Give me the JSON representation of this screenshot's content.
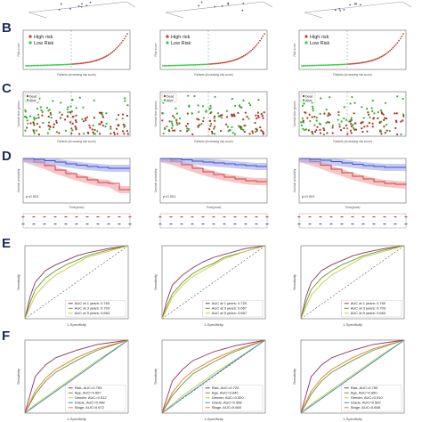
{
  "figure": {
    "row_labels": [
      "B",
      "C",
      "D",
      "E",
      "F"
    ],
    "colors": {
      "high": "#c0392b",
      "low": "#2ecc40",
      "dead": "#b03020",
      "alive": "#30b030",
      "km_high": "#d04040",
      "km_low": "#4050c0",
      "band_high": "#f0a0a0",
      "band_low": "#a0a8f0",
      "roc1": "#8e3060",
      "roc2": "#6a9a30",
      "roc3": "#c9c940",
      "diag": "#555555"
    }
  },
  "chart_data": [
    {
      "type": "scatter",
      "row": "B",
      "title": "",
      "xlabel": "Patients (increasing risk score)",
      "ylabel": "Risk score",
      "legend": [
        "High risk",
        "Low Risk"
      ],
      "legend_position": "top-left"
    },
    {
      "type": "scatter",
      "row": "B",
      "title": "",
      "xlabel": "Patients (increasing risk score)",
      "ylabel": "Risk score",
      "legend": [
        "High risk",
        "Low Risk"
      ],
      "legend_position": "top-left"
    },
    {
      "type": "scatter",
      "row": "B",
      "title": "",
      "xlabel": "Patients (increasing risk score)",
      "ylabel": "Risk score",
      "legend": [
        "High risk",
        "Low Risk"
      ],
      "legend_position": "top-left"
    },
    {
      "type": "scatter",
      "row": "C",
      "xlabel": "Patients (increasing risk score)",
      "ylabel": "Survival time (years)",
      "legend": [
        "Dead",
        "Alive"
      ],
      "legend_position": "top-left"
    },
    {
      "type": "scatter",
      "row": "C",
      "xlabel": "Patients (increasing risk score)",
      "ylabel": "Survival time (years)",
      "legend": [
        "Dead",
        "Alive"
      ],
      "legend_position": "top-left"
    },
    {
      "type": "scatter",
      "row": "C",
      "xlabel": "Patients (increasing risk score)",
      "ylabel": "Survival time (years)",
      "legend": [
        "Dead",
        "Alive"
      ],
      "legend_position": "top-left"
    },
    {
      "type": "line",
      "row": "D",
      "xlabel": "Time(years)",
      "ylabel": "Survival probability",
      "pvalue": "p<0.001",
      "series": [
        {
          "x": [
            0,
            1,
            2,
            3,
            4,
            5,
            6,
            7,
            8,
            9,
            10
          ],
          "values": [
            1.0,
            0.92,
            0.84,
            0.74,
            0.66,
            0.58,
            0.52,
            0.46,
            0.44,
            0.3,
            0.3
          ]
        },
        {
          "x": [
            0,
            1,
            2,
            3,
            4,
            5,
            6,
            7,
            8,
            9,
            10
          ],
          "values": [
            1.0,
            0.98,
            0.95,
            0.92,
            0.88,
            0.85,
            0.82,
            0.8,
            0.78,
            0.78,
            0.78
          ]
        }
      ]
    },
    {
      "type": "line",
      "row": "D",
      "xlabel": "Time(years)",
      "ylabel": "Survival probability",
      "pvalue": "p<0.001",
      "series": [
        {
          "x": [
            0,
            1,
            2,
            3,
            4,
            5,
            6,
            7,
            8,
            9,
            10
          ],
          "values": [
            1.0,
            0.94,
            0.86,
            0.78,
            0.7,
            0.64,
            0.58,
            0.54,
            0.5,
            0.48,
            0.48
          ]
        },
        {
          "x": [
            0,
            1,
            2,
            3,
            4,
            5,
            6,
            7,
            8,
            9,
            10
          ],
          "values": [
            1.0,
            0.99,
            0.97,
            0.94,
            0.92,
            0.9,
            0.88,
            0.86,
            0.84,
            0.82,
            0.82
          ]
        }
      ]
    },
    {
      "type": "line",
      "row": "D",
      "xlabel": "Time(years)",
      "ylabel": "Survival probability",
      "pvalue": "p<0.001",
      "series": [
        {
          "x": [
            0,
            1,
            2,
            3,
            4,
            5,
            6,
            7,
            8,
            9,
            10
          ],
          "values": [
            1.0,
            0.93,
            0.85,
            0.76,
            0.68,
            0.6,
            0.54,
            0.48,
            0.44,
            0.42,
            0.4
          ]
        },
        {
          "x": [
            0,
            1,
            2,
            3,
            4,
            5,
            6,
            7,
            8,
            9,
            10
          ],
          "values": [
            1.0,
            0.98,
            0.96,
            0.93,
            0.9,
            0.87,
            0.84,
            0.82,
            0.8,
            0.8,
            0.8
          ]
        }
      ]
    },
    {
      "type": "line",
      "row": "E",
      "xlabel": "1-Specificity",
      "ylabel": "Sensitivity",
      "legend": [
        "AUC at 1 years: 0.763",
        "AUC at 3 years: 0.703",
        "AUC at 5 years: 0.663"
      ],
      "legend_position": "bottom-right",
      "series": [
        {
          "x": [
            0,
            0.05,
            0.1,
            0.2,
            0.3,
            0.4,
            0.5,
            0.6,
            0.8,
            1
          ],
          "values": [
            0,
            0.3,
            0.5,
            0.66,
            0.74,
            0.8,
            0.86,
            0.9,
            0.96,
            1
          ]
        },
        {
          "x": [
            0,
            0.05,
            0.1,
            0.2,
            0.3,
            0.4,
            0.5,
            0.6,
            0.8,
            1
          ],
          "values": [
            0,
            0.22,
            0.4,
            0.56,
            0.66,
            0.74,
            0.8,
            0.86,
            0.94,
            1
          ]
        },
        {
          "x": [
            0,
            0.05,
            0.1,
            0.2,
            0.3,
            0.4,
            0.5,
            0.6,
            0.8,
            1
          ],
          "values": [
            0,
            0.16,
            0.32,
            0.48,
            0.6,
            0.68,
            0.76,
            0.84,
            0.92,
            1
          ]
        }
      ]
    },
    {
      "type": "line",
      "row": "E",
      "xlabel": "1-Specificity",
      "ylabel": "Sensitivity",
      "legend": [
        "AUC at 1 years: 0.720",
        "AUC at 3 years: 0.667",
        "AUC at 5 years: 0.657"
      ],
      "legend_position": "bottom-right",
      "series": [
        {
          "x": [
            0,
            0.05,
            0.1,
            0.2,
            0.3,
            0.4,
            0.5,
            0.6,
            0.8,
            1
          ],
          "values": [
            0,
            0.26,
            0.46,
            0.6,
            0.7,
            0.78,
            0.84,
            0.88,
            0.96,
            1
          ]
        },
        {
          "x": [
            0,
            0.05,
            0.1,
            0.2,
            0.3,
            0.4,
            0.5,
            0.6,
            0.8,
            1
          ],
          "values": [
            0,
            0.18,
            0.34,
            0.5,
            0.62,
            0.7,
            0.76,
            0.84,
            0.92,
            1
          ]
        },
        {
          "x": [
            0,
            0.05,
            0.1,
            0.2,
            0.3,
            0.4,
            0.5,
            0.6,
            0.8,
            1
          ],
          "values": [
            0,
            0.14,
            0.3,
            0.46,
            0.58,
            0.66,
            0.74,
            0.82,
            0.92,
            1
          ]
        }
      ]
    },
    {
      "type": "line",
      "row": "E",
      "xlabel": "1-Specificity",
      "ylabel": "Sensitivity",
      "legend": [
        "AUC at 1 years: 0.760",
        "AUC at 3 years: 0.703",
        "AUC at 5 years: 0.663"
      ],
      "legend_position": "bottom-right",
      "series": [
        {
          "x": [
            0,
            0.05,
            0.1,
            0.2,
            0.3,
            0.4,
            0.5,
            0.6,
            0.8,
            1
          ],
          "values": [
            0,
            0.3,
            0.5,
            0.66,
            0.74,
            0.8,
            0.86,
            0.9,
            0.96,
            1
          ]
        },
        {
          "x": [
            0,
            0.05,
            0.1,
            0.2,
            0.3,
            0.4,
            0.5,
            0.6,
            0.8,
            1
          ],
          "values": [
            0,
            0.22,
            0.4,
            0.56,
            0.66,
            0.74,
            0.8,
            0.86,
            0.94,
            1
          ]
        },
        {
          "x": [
            0,
            0.05,
            0.1,
            0.2,
            0.3,
            0.4,
            0.5,
            0.6,
            0.8,
            1
          ],
          "values": [
            0,
            0.16,
            0.32,
            0.48,
            0.6,
            0.68,
            0.76,
            0.84,
            0.92,
            1
          ]
        }
      ]
    },
    {
      "type": "line",
      "row": "F",
      "xlabel": "1-Specificity",
      "ylabel": "Sensitivity",
      "legend": [
        "Risk, AUC=0.763",
        "Age, AUC=0.657",
        "Gender, AUC=0.512",
        "Grade, AUC=0.498",
        "Stage, AUC=0.672"
      ],
      "legend_position": "bottom-right",
      "series": [
        {
          "x": [
            0,
            0.1,
            0.2,
            0.3,
            0.5,
            0.7,
            1
          ],
          "values": [
            0,
            0.5,
            0.66,
            0.76,
            0.86,
            0.94,
            1
          ]
        },
        {
          "x": [
            0,
            0.1,
            0.2,
            0.3,
            0.5,
            0.7,
            1
          ],
          "values": [
            0,
            0.26,
            0.44,
            0.56,
            0.72,
            0.86,
            1
          ]
        },
        {
          "x": [
            0,
            0.1,
            0.2,
            0.3,
            0.5,
            0.7,
            1
          ],
          "values": [
            0,
            0.12,
            0.22,
            0.32,
            0.52,
            0.72,
            1
          ]
        },
        {
          "x": [
            0,
            0.1,
            0.2,
            0.3,
            0.5,
            0.7,
            1
          ],
          "values": [
            0,
            0.1,
            0.2,
            0.3,
            0.5,
            0.7,
            1
          ]
        },
        {
          "x": [
            0,
            0.1,
            0.2,
            0.3,
            0.5,
            0.7,
            1
          ],
          "values": [
            0,
            0.3,
            0.48,
            0.6,
            0.76,
            0.88,
            1
          ]
        }
      ]
    },
    {
      "type": "line",
      "row": "F",
      "xlabel": "1-Specificity",
      "ylabel": "Sensitivity",
      "legend": [
        "Risk, AUC=0.720",
        "Age, AUC=0.640",
        "Gender, AUC=0.520",
        "Grade, AUC=0.508",
        "Stage, AUC=0.660"
      ],
      "legend_position": "bottom-right",
      "series": [
        {
          "x": [
            0,
            0.1,
            0.2,
            0.3,
            0.5,
            0.7,
            1
          ],
          "values": [
            0,
            0.44,
            0.6,
            0.72,
            0.84,
            0.92,
            1
          ]
        },
        {
          "x": [
            0,
            0.1,
            0.2,
            0.3,
            0.5,
            0.7,
            1
          ],
          "values": [
            0,
            0.24,
            0.4,
            0.54,
            0.7,
            0.84,
            1
          ]
        },
        {
          "x": [
            0,
            0.1,
            0.2,
            0.3,
            0.5,
            0.7,
            1
          ],
          "values": [
            0,
            0.12,
            0.24,
            0.34,
            0.54,
            0.72,
            1
          ]
        },
        {
          "x": [
            0,
            0.1,
            0.2,
            0.3,
            0.5,
            0.7,
            1
          ],
          "values": [
            0,
            0.1,
            0.21,
            0.31,
            0.51,
            0.71,
            1
          ]
        },
        {
          "x": [
            0,
            0.1,
            0.2,
            0.3,
            0.5,
            0.7,
            1
          ],
          "values": [
            0,
            0.28,
            0.46,
            0.58,
            0.74,
            0.86,
            1
          ]
        }
      ]
    },
    {
      "type": "line",
      "row": "F",
      "xlabel": "1-Specificity",
      "ylabel": "Sensitivity",
      "legend": [
        "Risk, AUC=0.760",
        "Age, AUC=0.650",
        "Gender, AUC=0.510",
        "Grade, AUC=0.502",
        "Stage, AUC=0.668"
      ],
      "legend_position": "bottom-right",
      "series": [
        {
          "x": [
            0,
            0.1,
            0.2,
            0.3,
            0.5,
            0.7,
            1
          ],
          "values": [
            0,
            0.5,
            0.66,
            0.76,
            0.86,
            0.94,
            1
          ]
        },
        {
          "x": [
            0,
            0.1,
            0.2,
            0.3,
            0.5,
            0.7,
            1
          ],
          "values": [
            0,
            0.26,
            0.44,
            0.56,
            0.72,
            0.86,
            1
          ]
        },
        {
          "x": [
            0,
            0.1,
            0.2,
            0.3,
            0.5,
            0.7,
            1
          ],
          "values": [
            0,
            0.12,
            0.22,
            0.32,
            0.52,
            0.72,
            1
          ]
        },
        {
          "x": [
            0,
            0.1,
            0.2,
            0.3,
            0.5,
            0.7,
            1
          ],
          "values": [
            0,
            0.1,
            0.2,
            0.3,
            0.5,
            0.7,
            1
          ]
        },
        {
          "x": [
            0,
            0.1,
            0.2,
            0.3,
            0.5,
            0.7,
            1
          ],
          "values": [
            0,
            0.3,
            0.48,
            0.6,
            0.76,
            0.88,
            1
          ]
        }
      ]
    }
  ]
}
